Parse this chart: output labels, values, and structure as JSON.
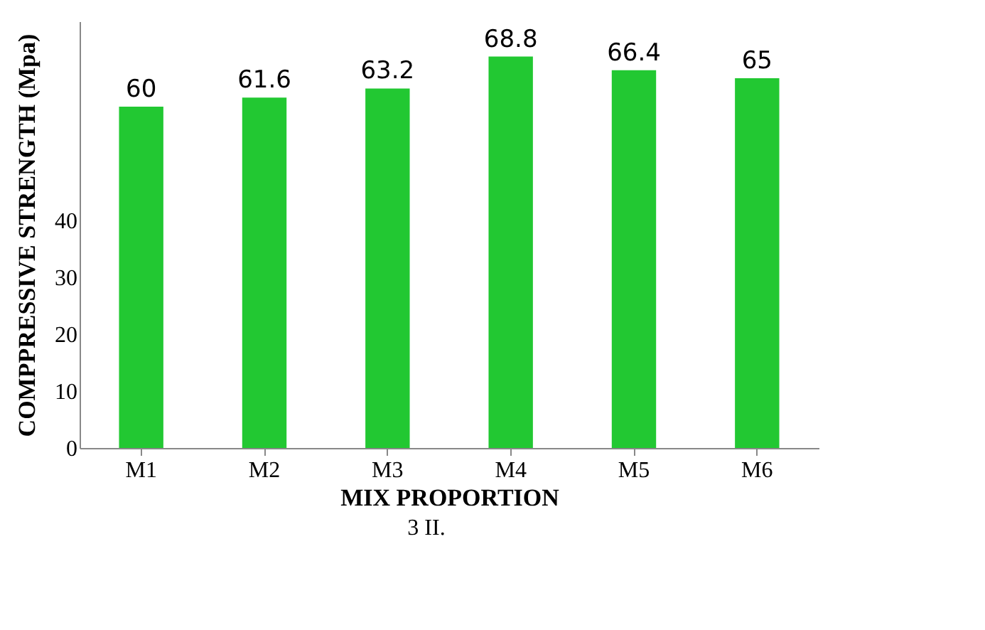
{
  "chart_data": {
    "type": "bar",
    "categories": [
      "M1",
      "M2",
      "M3",
      "M4",
      "M5",
      "M6"
    ],
    "values": [
      60,
      61.6,
      63.2,
      68.8,
      66.4,
      65
    ],
    "color": "#22c832",
    "ylim": [
      0,
      75
    ],
    "yticks": [
      0,
      10,
      20,
      30,
      40
    ],
    "data_labels": true,
    "xlabel": "MIX PROPORTION",
    "ylabel": "COMPPRESSIVE STRENGTH (Mpa)",
    "annotations": [
      "3",
      "II."
    ]
  }
}
